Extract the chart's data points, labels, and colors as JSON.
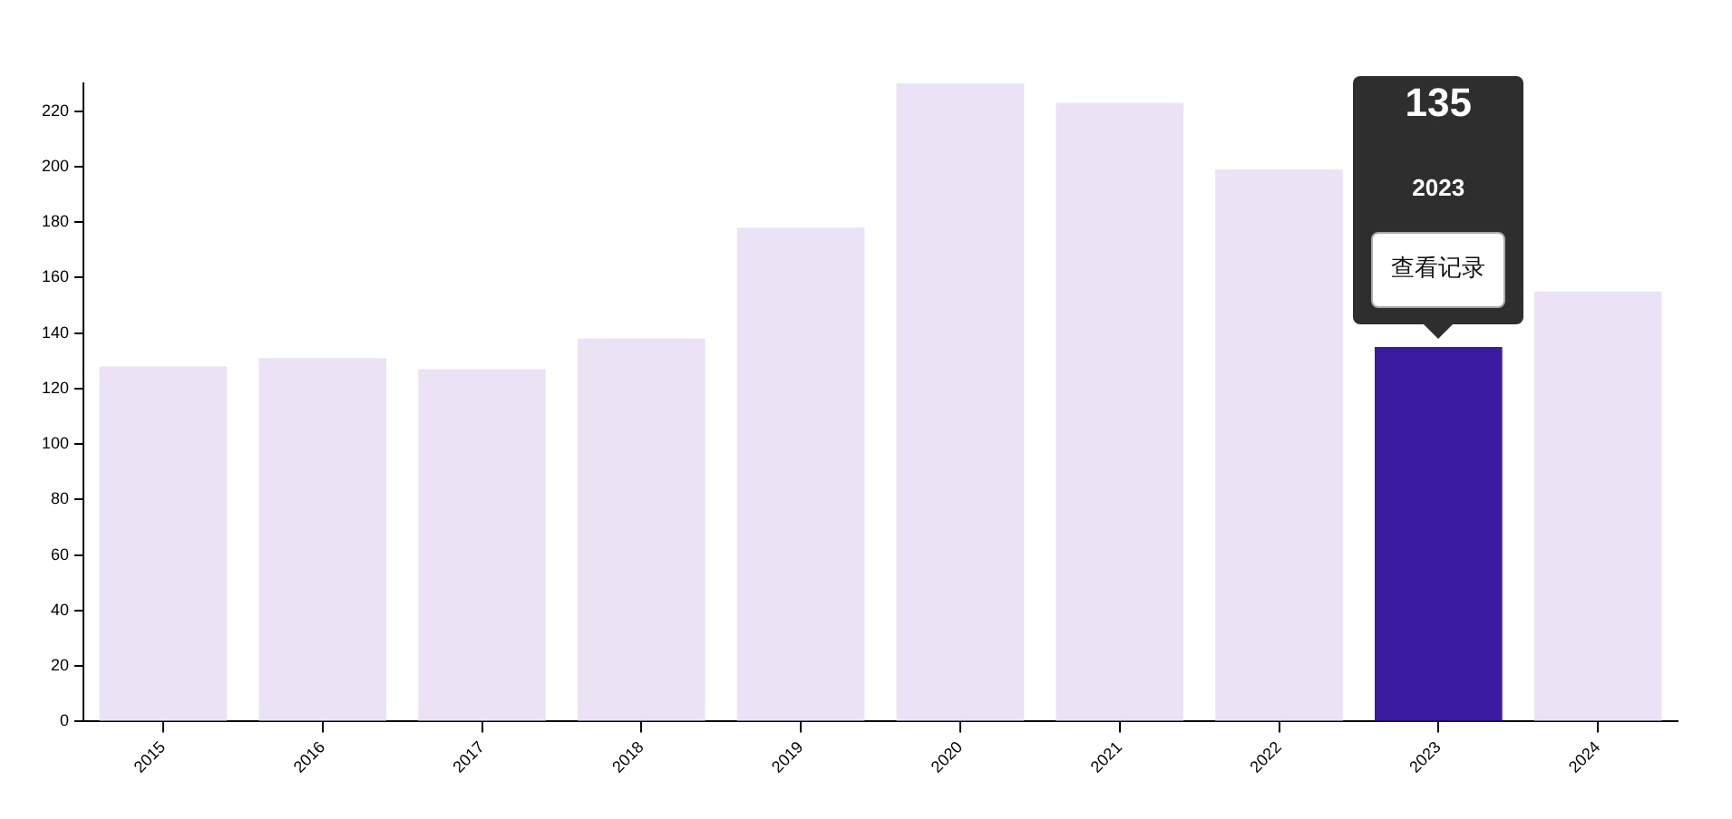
{
  "chart_data": {
    "type": "bar",
    "categories": [
      "2015",
      "2016",
      "2017",
      "2018",
      "2019",
      "2020",
      "2021",
      "2022",
      "2023",
      "2024"
    ],
    "values": [
      128,
      131,
      127,
      138,
      178,
      230,
      223,
      199,
      135,
      155
    ],
    "colors": [
      "#ebe3f5",
      "#ebe3f5",
      "#ebe3f5",
      "#ebe3f5",
      "#ebe3f5",
      "#ebe3f5",
      "#ebe3f5",
      "#ebe3f5",
      "#3a1ca3",
      "#ebe3f5"
    ],
    "annotations": [
      "135",
      "2023",
      "查看记录"
    ],
    "ylim": [
      0,
      230
    ],
    "yticks": [
      0,
      20,
      40,
      60,
      80,
      100,
      120,
      140,
      160,
      180,
      200,
      220
    ],
    "grid": false,
    "legend": false
  }
}
